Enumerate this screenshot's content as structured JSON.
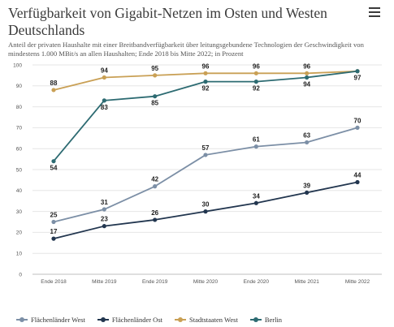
{
  "title": "Verfügbarkeit von Gigabit-Netzen im Osten und Westen Deutschlands",
  "subtitle": "Anteil der privaten Haushalte mit einer Breitbandverfügbarkeit über leitungsgebundene Technologien der Geschwindigkeit von mindestens 1.000 MBit/s an allen Haushalten; Ende 2018 bis Mitte 2022; in Prozent",
  "menu_icon": "hamburger-menu-icon",
  "chart_data": {
    "type": "line",
    "categories": [
      "Ende 2018",
      "Mitte 2019",
      "Ende 2019",
      "Mitte 2020",
      "Ende 2020",
      "Mitte 2021",
      "Mitte 2022"
    ],
    "ylim": [
      0,
      100
    ],
    "yticks": [
      0,
      10,
      20,
      30,
      40,
      50,
      60,
      70,
      80,
      90,
      100
    ],
    "grid": true,
    "legend": "bottom",
    "series": [
      {
        "name": "Flächenländer West",
        "color": "#7c8fa6",
        "values": [
          25,
          31,
          42,
          57,
          61,
          63,
          70
        ],
        "labels": [
          "25",
          "31",
          "42",
          "57",
          "61",
          "63",
          "70"
        ],
        "label_pos": "above"
      },
      {
        "name": "Flächenländer Ost",
        "color": "#22364f",
        "values": [
          17,
          23,
          26,
          30,
          34,
          39,
          44
        ],
        "labels": [
          "17",
          "23",
          "26",
          "30",
          "34",
          "39",
          "44"
        ],
        "label_pos": "above"
      },
      {
        "name": "Stadtstaaten West",
        "color": "#c9a055",
        "values": [
          88,
          94,
          95,
          96,
          96,
          96,
          97
        ],
        "labels": [
          "88",
          "94",
          "95",
          "96",
          "96",
          "96",
          ""
        ],
        "label_pos": "above"
      },
      {
        "name": "Berlin",
        "color": "#2d6b72",
        "values": [
          54,
          83,
          85,
          92,
          92,
          94,
          97
        ],
        "labels": [
          "54",
          "83",
          "85",
          "92",
          "92",
          "94",
          "97"
        ],
        "label_pos": "below"
      }
    ]
  }
}
